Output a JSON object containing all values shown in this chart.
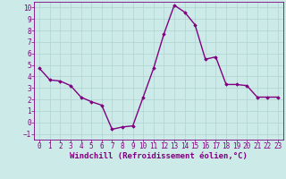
{
  "x": [
    0,
    1,
    2,
    3,
    4,
    5,
    6,
    7,
    8,
    9,
    10,
    11,
    12,
    13,
    14,
    15,
    16,
    17,
    18,
    19,
    20,
    21,
    22,
    23
  ],
  "y": [
    4.7,
    3.7,
    3.6,
    3.2,
    2.2,
    1.8,
    1.5,
    -0.6,
    -0.4,
    -0.3,
    2.2,
    4.7,
    7.7,
    10.2,
    9.6,
    8.5,
    5.5,
    5.7,
    3.3,
    3.3,
    3.2,
    2.2,
    2.2,
    2.2
  ],
  "line_color": "#800080",
  "marker": "D",
  "marker_size": 1.8,
  "line_width": 1.0,
  "bg_color": "#cceae7",
  "grid_color": "#b0d4d0",
  "xlabel": "Windchill (Refroidissement éolien,°C)",
  "xlabel_fontsize": 6.5,
  "xlabel_color": "#800080",
  "tick_color": "#800080",
  "tick_fontsize": 5.5,
  "xlim": [
    -0.5,
    23.5
  ],
  "ylim": [
    -1.5,
    10.5
  ],
  "yticks": [
    -1,
    0,
    1,
    2,
    3,
    4,
    5,
    6,
    7,
    8,
    9,
    10
  ],
  "xticks": [
    0,
    1,
    2,
    3,
    4,
    5,
    6,
    7,
    8,
    9,
    10,
    11,
    12,
    13,
    14,
    15,
    16,
    17,
    18,
    19,
    20,
    21,
    22,
    23
  ]
}
